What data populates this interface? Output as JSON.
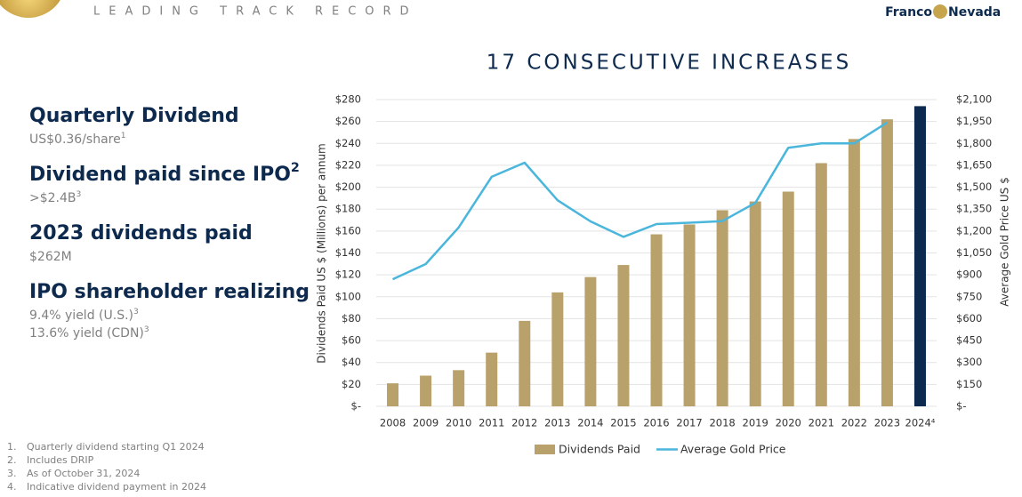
{
  "header": {
    "section": "LEADING TRACK RECORD",
    "logo_left": "Franco",
    "logo_right": "Nevada"
  },
  "highlights": [
    {
      "heading": "Quarterly Dividend",
      "details": [
        {
          "text": "US$0.36/share",
          "sup": "1"
        }
      ]
    },
    {
      "heading": "Dividend paid since IPO",
      "heading_sup": "2",
      "details": [
        {
          "text": ">$2.4B",
          "sup": "3"
        }
      ]
    },
    {
      "heading": "2023 dividends paid",
      "details": [
        {
          "text": "$262M"
        }
      ]
    },
    {
      "heading": "IPO shareholder realizing",
      "details": [
        {
          "text": "9.4% yield (U.S.)",
          "sup": "3"
        },
        {
          "text": "13.6% yield (CDN)",
          "sup": "3"
        }
      ]
    }
  ],
  "footnotes": [
    {
      "number": "1.",
      "text": "Quarterly dividend starting Q1 2024"
    },
    {
      "number": "2.",
      "text": "Includes DRIP"
    },
    {
      "number": "3.",
      "text": "As of October 31, 2024"
    },
    {
      "number": "4.",
      "text": "Indicative dividend payment in 2024"
    }
  ],
  "chart_data": {
    "type": "bar_line",
    "title": "17 CONSECUTIVE INCREASES",
    "y_label": "Dividends Paid US $ (Millions) per annum",
    "y2_label": "Average Gold Price US $",
    "categories": [
      "2008",
      "2009",
      "2010",
      "2011",
      "2012",
      "2013",
      "2014",
      "2015",
      "2016",
      "2017",
      "2018",
      "2019",
      "2020",
      "2021",
      "2022",
      "2023",
      "2024⁴"
    ],
    "series": [
      {
        "name": "Dividends Paid",
        "type": "bar",
        "color": "#b9a16b",
        "colors": [
          "#b9a16b",
          "#b9a16b",
          "#b9a16b",
          "#b9a16b",
          "#b9a16b",
          "#b9a16b",
          "#b9a16b",
          "#b9a16b",
          "#b9a16b",
          "#b9a16b",
          "#b9a16b",
          "#b9a16b",
          "#b9a16b",
          "#b9a16b",
          "#b9a16b",
          "#b9a16b",
          "#0d2a4e"
        ],
        "values": [
          21,
          28,
          33,
          49,
          78,
          104,
          118,
          129,
          157,
          166,
          179,
          187,
          196,
          222,
          244,
          262,
          274
        ]
      },
      {
        "name": "Average Gold Price",
        "type": "line",
        "axis": "y2",
        "color": "#4ab6dc",
        "values": [
          870,
          974,
          1224,
          1571,
          1668,
          1411,
          1266,
          1160,
          1248,
          1257,
          1268,
          1393,
          1770,
          1800,
          1800,
          1943,
          null
        ]
      }
    ],
    "ylim": [
      0,
      280
    ],
    "yticks": [
      {
        "value": 0,
        "label": "$-"
      },
      {
        "value": 20,
        "label": "$20"
      },
      {
        "value": 40,
        "label": "$40"
      },
      {
        "value": 60,
        "label": "$60"
      },
      {
        "value": 80,
        "label": "$80"
      },
      {
        "value": 100,
        "label": "$100"
      },
      {
        "value": 120,
        "label": "$120"
      },
      {
        "value": 140,
        "label": "$140"
      },
      {
        "value": 160,
        "label": "$160"
      },
      {
        "value": 180,
        "label": "$180"
      },
      {
        "value": 200,
        "label": "$200"
      },
      {
        "value": 220,
        "label": "$220"
      },
      {
        "value": 240,
        "label": "$240"
      },
      {
        "value": 260,
        "label": "$260"
      },
      {
        "value": 280,
        "label": "$280"
      }
    ],
    "y2lim": [
      0,
      2100
    ],
    "y2ticks": [
      {
        "value": 0,
        "label": "$-"
      },
      {
        "value": 150,
        "label": "$150"
      },
      {
        "value": 300,
        "label": "$300"
      },
      {
        "value": 450,
        "label": "$450"
      },
      {
        "value": 600,
        "label": "$600"
      },
      {
        "value": 750,
        "label": "$750"
      },
      {
        "value": 900,
        "label": "$900"
      },
      {
        "value": 1050,
        "label": "$1,050"
      },
      {
        "value": 1200,
        "label": "$1,200"
      },
      {
        "value": 1350,
        "label": "$1,350"
      },
      {
        "value": 1500,
        "label": "$1,500"
      },
      {
        "value": 1650,
        "label": "$1,650"
      },
      {
        "value": 1800,
        "label": "$1,800"
      },
      {
        "value": 1950,
        "label": "$1,950"
      },
      {
        "value": 2100,
        "label": "$2,100"
      }
    ],
    "grid": true,
    "legend": "bottom"
  }
}
